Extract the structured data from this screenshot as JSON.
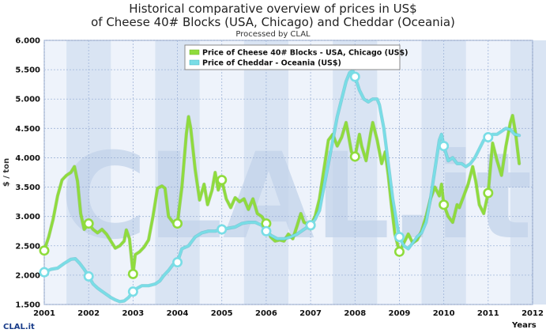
{
  "header": {
    "title_line1": "Historical comparative overview of prices in US$",
    "title_line2": "of Cheese 40# Blocks (USA, Chicago) and Cheddar (Oceania)",
    "subtitle": "Processed by CLAL"
  },
  "watermark": {
    "text": "CLAL.it"
  },
  "logo": {
    "text": "CLAL.it"
  },
  "colors": {
    "usa_line": "#8fdc3c",
    "usa_line_dark": "#6fb52c",
    "oceania_line": "#79dde6",
    "oceania_line_dark": "#3fb3c0",
    "plot_bg": "#eef3fb",
    "band_bg": "#d9e4f3",
    "grid": "#9fb4d8",
    "watermark": "#c3d3ea"
  },
  "chart_data": {
    "type": "line",
    "xlabel": "Years",
    "ylabel": "$ / ton",
    "xlim": [
      2001,
      2012
    ],
    "ylim": [
      1.5,
      6.0
    ],
    "xticks": [
      "2001",
      "2002",
      "2003",
      "2004",
      "2005",
      "2006",
      "2007",
      "2008",
      "2009",
      "2010",
      "2011",
      "2012"
    ],
    "yticks": [
      "1.500",
      "2.000",
      "2.500",
      "3.000",
      "3.500",
      "4.000",
      "4.500",
      "5.000",
      "5.500",
      "6.000"
    ],
    "grid": true,
    "legend_position": "top-center",
    "series": [
      {
        "name": "Price of Cheese 40# Blocks - USA, Chicago (US$)",
        "color": "#8fdc3c",
        "points": [
          [
            2001.0,
            2.42
          ],
          [
            2001.1,
            2.65
          ],
          [
            2001.2,
            2.95
          ],
          [
            2001.3,
            3.35
          ],
          [
            2001.4,
            3.62
          ],
          [
            2001.5,
            3.7
          ],
          [
            2001.6,
            3.75
          ],
          [
            2001.68,
            3.85
          ],
          [
            2001.75,
            3.6
          ],
          [
            2001.82,
            3.05
          ],
          [
            2001.9,
            2.78
          ],
          [
            2002.0,
            2.88
          ],
          [
            2002.1,
            2.78
          ],
          [
            2002.2,
            2.72
          ],
          [
            2002.3,
            2.78
          ],
          [
            2002.4,
            2.7
          ],
          [
            2002.5,
            2.58
          ],
          [
            2002.6,
            2.46
          ],
          [
            2002.7,
            2.5
          ],
          [
            2002.8,
            2.58
          ],
          [
            2002.85,
            2.77
          ],
          [
            2002.92,
            2.62
          ],
          [
            2003.0,
            2.02
          ],
          [
            2003.05,
            2.35
          ],
          [
            2003.15,
            2.4
          ],
          [
            2003.25,
            2.48
          ],
          [
            2003.35,
            2.6
          ],
          [
            2003.45,
            3.0
          ],
          [
            2003.55,
            3.48
          ],
          [
            2003.65,
            3.52
          ],
          [
            2003.72,
            3.48
          ],
          [
            2003.8,
            3.0
          ],
          [
            2003.9,
            2.9
          ],
          [
            2004.0,
            2.88
          ],
          [
            2004.1,
            3.5
          ],
          [
            2004.2,
            4.4
          ],
          [
            2004.25,
            4.7
          ],
          [
            2004.3,
            4.5
          ],
          [
            2004.4,
            3.8
          ],
          [
            2004.5,
            3.28
          ],
          [
            2004.6,
            3.55
          ],
          [
            2004.68,
            3.2
          ],
          [
            2004.78,
            3.45
          ],
          [
            2004.85,
            3.75
          ],
          [
            2004.92,
            3.45
          ],
          [
            2005.0,
            3.62
          ],
          [
            2005.1,
            3.3
          ],
          [
            2005.2,
            3.15
          ],
          [
            2005.3,
            3.32
          ],
          [
            2005.4,
            3.25
          ],
          [
            2005.5,
            3.3
          ],
          [
            2005.6,
            3.12
          ],
          [
            2005.7,
            3.3
          ],
          [
            2005.8,
            3.05
          ],
          [
            2005.9,
            3.0
          ],
          [
            2006.0,
            2.88
          ],
          [
            2006.1,
            2.65
          ],
          [
            2006.2,
            2.58
          ],
          [
            2006.3,
            2.6
          ],
          [
            2006.4,
            2.58
          ],
          [
            2006.5,
            2.7
          ],
          [
            2006.6,
            2.62
          ],
          [
            2006.7,
            2.85
          ],
          [
            2006.78,
            3.05
          ],
          [
            2006.85,
            2.9
          ],
          [
            2007.0,
            2.85
          ],
          [
            2007.1,
            3.0
          ],
          [
            2007.2,
            3.3
          ],
          [
            2007.3,
            3.8
          ],
          [
            2007.4,
            4.3
          ],
          [
            2007.5,
            4.4
          ],
          [
            2007.6,
            4.2
          ],
          [
            2007.7,
            4.35
          ],
          [
            2007.8,
            4.6
          ],
          [
            2007.85,
            4.4
          ],
          [
            2007.92,
            4.1
          ],
          [
            2008.0,
            4.02
          ],
          [
            2008.1,
            4.4
          ],
          [
            2008.15,
            4.2
          ],
          [
            2008.25,
            3.95
          ],
          [
            2008.35,
            4.4
          ],
          [
            2008.4,
            4.6
          ],
          [
            2008.5,
            4.3
          ],
          [
            2008.6,
            3.9
          ],
          [
            2008.68,
            4.1
          ],
          [
            2008.75,
            3.7
          ],
          [
            2008.82,
            3.2
          ],
          [
            2008.9,
            2.7
          ],
          [
            2009.0,
            2.4
          ],
          [
            2009.1,
            2.55
          ],
          [
            2009.2,
            2.7
          ],
          [
            2009.3,
            2.55
          ],
          [
            2009.4,
            2.6
          ],
          [
            2009.5,
            2.75
          ],
          [
            2009.6,
            3.0
          ],
          [
            2009.7,
            3.3
          ],
          [
            2009.8,
            3.5
          ],
          [
            2009.9,
            3.35
          ],
          [
            2009.95,
            3.55
          ],
          [
            2010.0,
            3.2
          ],
          [
            2010.1,
            3.0
          ],
          [
            2010.2,
            2.9
          ],
          [
            2010.3,
            3.2
          ],
          [
            2010.35,
            3.15
          ],
          [
            2010.45,
            3.35
          ],
          [
            2010.55,
            3.55
          ],
          [
            2010.65,
            3.85
          ],
          [
            2010.72,
            3.6
          ],
          [
            2010.8,
            3.2
          ],
          [
            2010.9,
            3.05
          ],
          [
            2011.0,
            3.4
          ],
          [
            2011.1,
            4.25
          ],
          [
            2011.2,
            3.95
          ],
          [
            2011.3,
            3.7
          ],
          [
            2011.4,
            4.2
          ],
          [
            2011.5,
            4.6
          ],
          [
            2011.55,
            4.72
          ],
          [
            2011.62,
            4.4
          ],
          [
            2011.7,
            3.9
          ]
        ],
        "markers": [
          [
            2001.0,
            2.42
          ],
          [
            2002.0,
            2.88
          ],
          [
            2003.0,
            2.02
          ],
          [
            2004.0,
            2.88
          ],
          [
            2005.0,
            3.62
          ],
          [
            2006.0,
            2.88
          ],
          [
            2007.0,
            2.85
          ],
          [
            2008.0,
            4.02
          ],
          [
            2009.0,
            2.4
          ],
          [
            2010.0,
            3.2
          ],
          [
            2011.0,
            3.4
          ]
        ]
      },
      {
        "name": "Price of Cheddar - Oceania (US$)",
        "color": "#79dde6",
        "points": [
          [
            2001.0,
            2.05
          ],
          [
            2001.15,
            2.1
          ],
          [
            2001.3,
            2.12
          ],
          [
            2001.45,
            2.2
          ],
          [
            2001.6,
            2.27
          ],
          [
            2001.7,
            2.28
          ],
          [
            2001.8,
            2.2
          ],
          [
            2001.9,
            2.1
          ],
          [
            2002.0,
            1.98
          ],
          [
            2002.1,
            1.85
          ],
          [
            2002.2,
            1.78
          ],
          [
            2002.35,
            1.7
          ],
          [
            2002.5,
            1.62
          ],
          [
            2002.6,
            1.58
          ],
          [
            2002.7,
            1.55
          ],
          [
            2002.8,
            1.56
          ],
          [
            2002.9,
            1.62
          ],
          [
            2003.0,
            1.72
          ],
          [
            2003.1,
            1.78
          ],
          [
            2003.2,
            1.82
          ],
          [
            2003.35,
            1.82
          ],
          [
            2003.5,
            1.85
          ],
          [
            2003.6,
            1.9
          ],
          [
            2003.7,
            2.0
          ],
          [
            2003.8,
            2.08
          ],
          [
            2003.9,
            2.18
          ],
          [
            2004.0,
            2.22
          ],
          [
            2004.1,
            2.45
          ],
          [
            2004.25,
            2.5
          ],
          [
            2004.4,
            2.65
          ],
          [
            2004.55,
            2.72
          ],
          [
            2004.7,
            2.75
          ],
          [
            2004.85,
            2.75
          ],
          [
            2005.0,
            2.78
          ],
          [
            2005.15,
            2.8
          ],
          [
            2005.3,
            2.82
          ],
          [
            2005.45,
            2.88
          ],
          [
            2005.6,
            2.9
          ],
          [
            2005.75,
            2.9
          ],
          [
            2005.9,
            2.85
          ],
          [
            2006.0,
            2.75
          ],
          [
            2006.1,
            2.68
          ],
          [
            2006.25,
            2.62
          ],
          [
            2006.4,
            2.62
          ],
          [
            2006.55,
            2.65
          ],
          [
            2006.7,
            2.7
          ],
          [
            2006.85,
            2.78
          ],
          [
            2007.0,
            2.85
          ],
          [
            2007.1,
            2.95
          ],
          [
            2007.2,
            3.1
          ],
          [
            2007.3,
            3.5
          ],
          [
            2007.4,
            3.9
          ],
          [
            2007.5,
            4.3
          ],
          [
            2007.6,
            4.7
          ],
          [
            2007.7,
            5.0
          ],
          [
            2007.8,
            5.3
          ],
          [
            2007.88,
            5.45
          ],
          [
            2007.95,
            5.48
          ],
          [
            2008.0,
            5.38
          ],
          [
            2008.1,
            5.15
          ],
          [
            2008.2,
            5.0
          ],
          [
            2008.3,
            4.95
          ],
          [
            2008.4,
            5.0
          ],
          [
            2008.5,
            5.0
          ],
          [
            2008.55,
            4.9
          ],
          [
            2008.65,
            4.5
          ],
          [
            2008.75,
            3.9
          ],
          [
            2008.85,
            3.3
          ],
          [
            2008.95,
            2.85
          ],
          [
            2009.0,
            2.65
          ],
          [
            2009.1,
            2.5
          ],
          [
            2009.2,
            2.45
          ],
          [
            2009.3,
            2.55
          ],
          [
            2009.4,
            2.65
          ],
          [
            2009.5,
            2.72
          ],
          [
            2009.6,
            2.9
          ],
          [
            2009.7,
            3.3
          ],
          [
            2009.8,
            3.8
          ],
          [
            2009.9,
            4.3
          ],
          [
            2009.95,
            4.4
          ],
          [
            2010.0,
            4.2
          ],
          [
            2010.1,
            3.95
          ],
          [
            2010.2,
            4.0
          ],
          [
            2010.3,
            3.9
          ],
          [
            2010.4,
            3.9
          ],
          [
            2010.5,
            3.85
          ],
          [
            2010.6,
            3.9
          ],
          [
            2010.7,
            4.0
          ],
          [
            2010.8,
            4.15
          ],
          [
            2010.9,
            4.3
          ],
          [
            2011.0,
            4.35
          ],
          [
            2011.1,
            4.4
          ],
          [
            2011.2,
            4.4
          ],
          [
            2011.3,
            4.45
          ],
          [
            2011.4,
            4.5
          ],
          [
            2011.5,
            4.48
          ],
          [
            2011.6,
            4.4
          ],
          [
            2011.7,
            4.38
          ]
        ],
        "markers": [
          [
            2001.0,
            2.05
          ],
          [
            2002.0,
            1.98
          ],
          [
            2003.0,
            1.72
          ],
          [
            2004.0,
            2.22
          ],
          [
            2005.0,
            2.78
          ],
          [
            2006.0,
            2.75
          ],
          [
            2007.0,
            2.85
          ],
          [
            2008.0,
            5.38
          ],
          [
            2009.0,
            2.65
          ],
          [
            2010.0,
            4.2
          ],
          [
            2011.0,
            4.35
          ]
        ]
      }
    ]
  }
}
